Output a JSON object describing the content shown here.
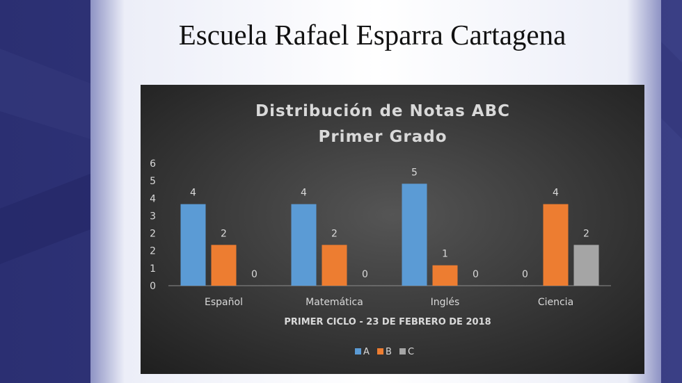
{
  "slide": {
    "title": "Escuela Rafael Esparra Cartagena"
  },
  "colors": {
    "page_bg": "#2a2e6e",
    "slide_bg": "#f3f3fa",
    "chart_bg_center": "#525252",
    "chart_bg_edge": "#1c1c1c",
    "series_A": "#5b9bd5",
    "series_B": "#ed7d31",
    "series_C": "#a5a5a5"
  },
  "chart_data": {
    "type": "bar",
    "title_line1": "Distribución de Notas ABC",
    "title_line2": "Primer Grado",
    "xlabel": "PRIMER CICLO - 23 DE FEBRERO DE  2018",
    "ylabel": "",
    "ylim": [
      0,
      6
    ],
    "yticks": [
      "0",
      "1",
      "2",
      "2",
      "3",
      "4",
      "5",
      "6"
    ],
    "categories": [
      "Español",
      "Matemática",
      "Inglés",
      "Ciencia"
    ],
    "series": [
      {
        "name": "A",
        "values": [
          4,
          4,
          5,
          0
        ]
      },
      {
        "name": "B",
        "values": [
          2,
          2,
          1,
          4
        ]
      },
      {
        "name": "C",
        "values": [
          0,
          0,
          0,
          2
        ]
      }
    ],
    "legend_position": "bottom",
    "data_labels": true,
    "grid": false
  }
}
